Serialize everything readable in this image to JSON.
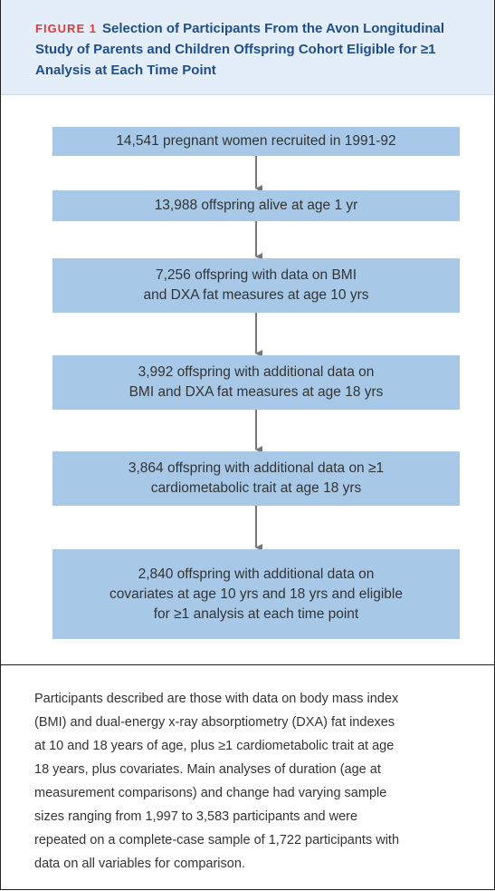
{
  "header": {
    "label": "FIGURE 1",
    "title": "Selection of Participants From the Avon Longitudinal Study of Parents and Children Offspring Cohort Eligible for ≥1 Analysis at Each Time Point"
  },
  "nodes": [
    {
      "lines": [
        "14,541 pregnant women recruited in 1991-92"
      ]
    },
    {
      "lines": [
        "13,988 offspring alive at age 1 yr"
      ]
    },
    {
      "lines": [
        "7,256 offspring with data on BMI",
        "and DXA fat measures at age 10 yrs"
      ]
    },
    {
      "lines": [
        "3,992 offspring with additional data on",
        "BMI and DXA fat measures at age 18 yrs"
      ]
    },
    {
      "lines": [
        "3,864 offspring with additional data on ≥1",
        "cardiometabolic trait at age 18 yrs"
      ]
    },
    {
      "lines": [
        "2,840 offspring with additional data on",
        "covariates at age 10 yrs and 18 yrs and eligible",
        "for ≥1 analysis at each time point"
      ]
    }
  ],
  "caption": {
    "lines": [
      "Participants described are those with data on body mass index",
      "(BMI) and dual-energy x-ray absorptiometry (DXA) fat indexes",
      "at 10 and 18 years of age, plus ≥1 cardiometabolic trait at age",
      "18 years, plus covariates. Main analyses of duration (age at",
      "measurement comparisons) and change had varying sample",
      "sizes ranging from 1,997 to 3,583 participants and were",
      "repeated on a complete-case sample of 1,722 participants with",
      "data on all variables for comparison."
    ]
  }
}
